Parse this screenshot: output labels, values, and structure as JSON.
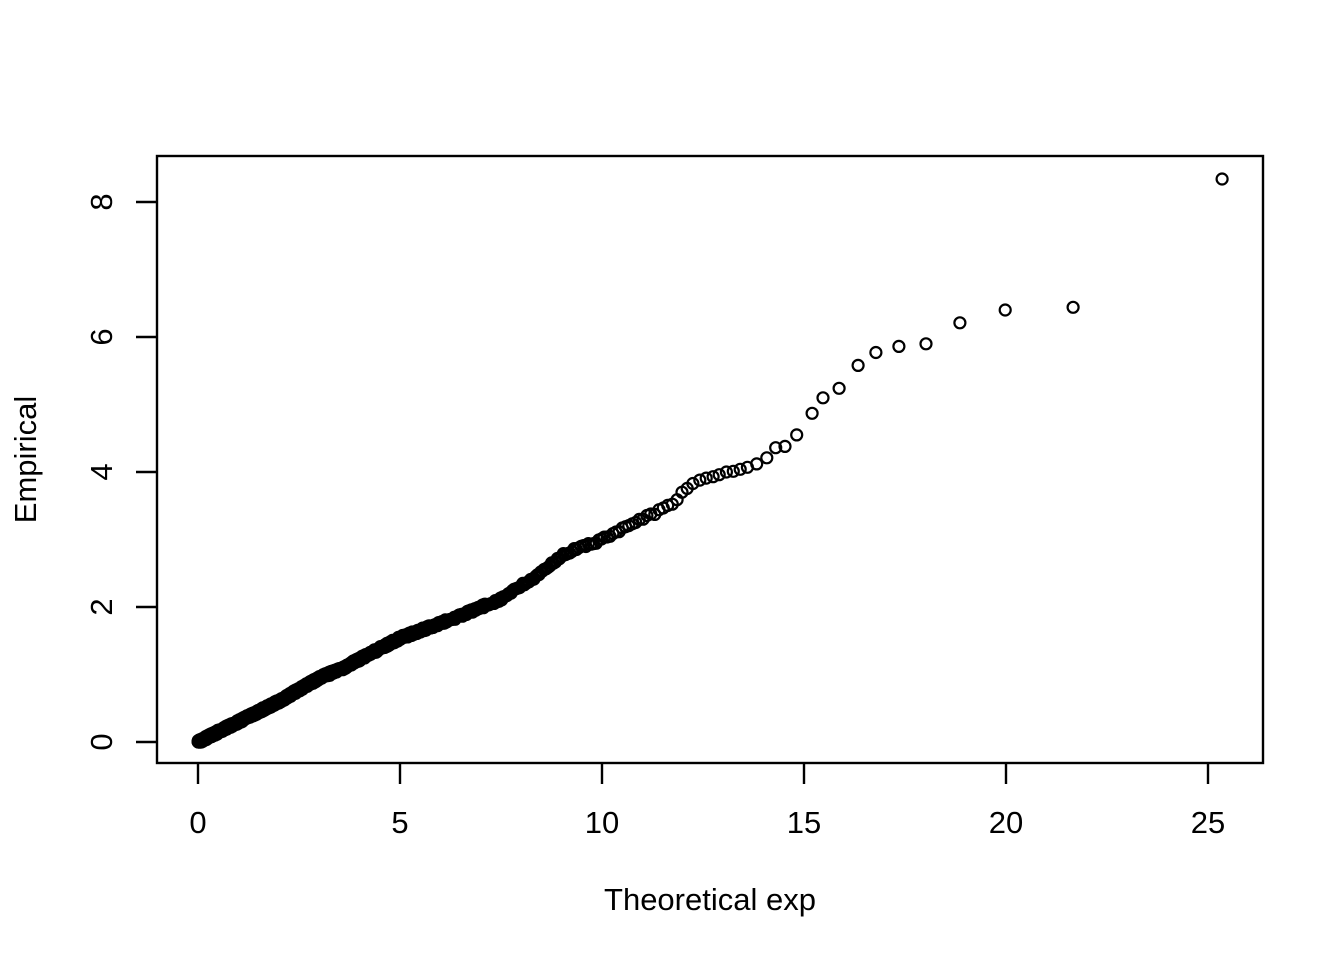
{
  "figure": {
    "background_color": "#ffffff",
    "foreground_color": "#000000"
  },
  "chart_data": {
    "type": "scatter",
    "title": "",
    "xlabel": "Theoretical exp",
    "ylabel": "Empirical",
    "x_ticks": [
      0,
      5,
      10,
      15,
      20,
      25
    ],
    "y_ticks": [
      0,
      2,
      4,
      6,
      8
    ],
    "xlim": [
      -1.0,
      26.7
    ],
    "ylim": [
      -0.31,
      8.7
    ],
    "grid": false,
    "legend": null,
    "marker": {
      "shape": "open-circle",
      "radius_px": 5.5,
      "stroke": "#000000",
      "stroke_width_px": 2.2,
      "fill": "none"
    },
    "description": "Exponential Q-Q plot: ~1000 empirical quantiles plotted against theoretical exponential quantiles. Points hug a straight line of slope ~0.3 through the origin up to x~12 (heavily overplotted solid band), then the upper tail spreads out and drifts with steps up to the maximum point.",
    "dense_band": {
      "note": "points too overplotted to resolve individually; regenerated from exponential quantiles x_i=-theta*ln(1-(i-0.5)/n) with y interpolated through anchors plus tiny jitter",
      "n": 1000,
      "theta": 3.3,
      "x_max": 12.2,
      "jitter": 0.025,
      "seed": 42,
      "anchors": [
        [
          0,
          0
        ],
        [
          2,
          0.6
        ],
        [
          3,
          0.95
        ],
        [
          3.5,
          1.07
        ],
        [
          5,
          1.54
        ],
        [
          6.5,
          1.87
        ],
        [
          7.5,
          2.12
        ],
        [
          8.5,
          2.5
        ],
        [
          9,
          2.77
        ],
        [
          10,
          3.0
        ],
        [
          11,
          3.3
        ],
        [
          11.7,
          3.51
        ],
        [
          12.2,
          3.82
        ]
      ]
    },
    "tail_points": [
      [
        12.25,
        3.83
      ],
      [
        12.42,
        3.88
      ],
      [
        12.58,
        3.91
      ],
      [
        12.75,
        3.93
      ],
      [
        12.9,
        3.96
      ],
      [
        13.08,
        4.0
      ],
      [
        13.25,
        4.01
      ],
      [
        13.42,
        4.04
      ],
      [
        13.6,
        4.07
      ],
      [
        13.83,
        4.12
      ],
      [
        14.08,
        4.21
      ],
      [
        14.3,
        4.36
      ],
      [
        14.53,
        4.38
      ],
      [
        14.82,
        4.55
      ],
      [
        15.2,
        4.87
      ],
      [
        15.47,
        5.1
      ],
      [
        15.87,
        5.24
      ],
      [
        16.34,
        5.58
      ],
      [
        16.78,
        5.77
      ],
      [
        17.35,
        5.86
      ],
      [
        18.02,
        5.9
      ],
      [
        18.86,
        6.21
      ],
      [
        19.98,
        6.4
      ],
      [
        21.66,
        6.44
      ],
      [
        25.35,
        8.34
      ]
    ]
  }
}
